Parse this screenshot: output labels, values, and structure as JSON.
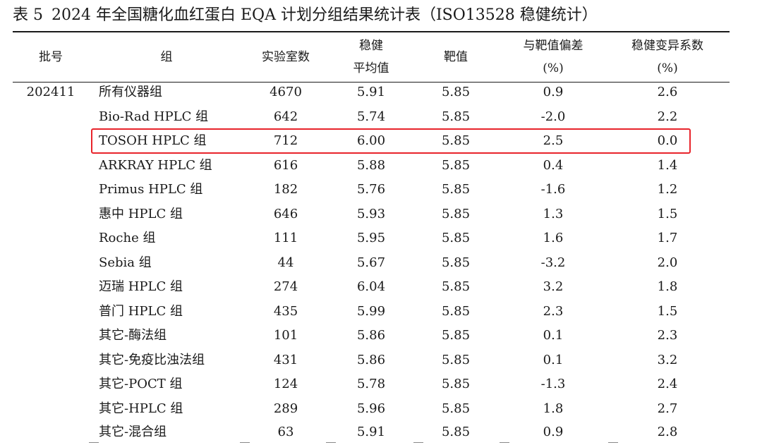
{
  "title": {
    "prefix": "表 5",
    "text": "2024 年全国糖化血红蛋白 EQA 计划分组结果统计表（ISO13528 稳健统计）"
  },
  "headers": {
    "batch": "批号",
    "group": "组",
    "labs": "实验室数",
    "robust_mean_l1": "稳健",
    "robust_mean_l2": "平均值",
    "target": "靶值",
    "bias_l1": "与靶值偏差",
    "bias_l2": "(%)",
    "cv_l1": "稳健变异系数",
    "cv_l2": "(%)"
  },
  "rows": [
    {
      "batch": "202411",
      "group": "所有仪器组",
      "labs": "4670",
      "mean": "5.91",
      "target": "5.85",
      "bias": "0.9",
      "cv": "2.6"
    },
    {
      "batch": "",
      "group": "Bio-Rad HPLC 组",
      "labs": "642",
      "mean": "5.74",
      "target": "5.85",
      "bias": "-2.0",
      "cv": "2.2"
    },
    {
      "batch": "",
      "group": "TOSOH HPLC 组",
      "labs": "712",
      "mean": "6.00",
      "target": "5.85",
      "bias": "2.5",
      "cv": "0.0"
    },
    {
      "batch": "",
      "group": "ARKRAY HPLC 组",
      "labs": "616",
      "mean": "5.88",
      "target": "5.85",
      "bias": "0.4",
      "cv": "1.4"
    },
    {
      "batch": "",
      "group": "Primus HPLC 组",
      "labs": "182",
      "mean": "5.76",
      "target": "5.85",
      "bias": "-1.6",
      "cv": "1.2"
    },
    {
      "batch": "",
      "group": "惠中 HPLC 组",
      "labs": "646",
      "mean": "5.93",
      "target": "5.85",
      "bias": "1.3",
      "cv": "1.5"
    },
    {
      "batch": "",
      "group": "Roche 组",
      "labs": "111",
      "mean": "5.95",
      "target": "5.85",
      "bias": "1.6",
      "cv": "1.7"
    },
    {
      "batch": "",
      "group": "Sebia 组",
      "labs": "44",
      "mean": "5.67",
      "target": "5.85",
      "bias": "-3.2",
      "cv": "2.0"
    },
    {
      "batch": "",
      "group": "迈瑞 HPLC 组",
      "labs": "274",
      "mean": "6.04",
      "target": "5.85",
      "bias": "3.2",
      "cv": "1.8"
    },
    {
      "batch": "",
      "group": "普门 HPLC 组",
      "labs": "435",
      "mean": "5.99",
      "target": "5.85",
      "bias": "2.3",
      "cv": "1.5"
    },
    {
      "batch": "",
      "group": "其它-酶法组",
      "labs": "101",
      "mean": "5.86",
      "target": "5.85",
      "bias": "0.1",
      "cv": "2.3"
    },
    {
      "batch": "",
      "group": "其它-免疫比浊法组",
      "labs": "431",
      "mean": "5.86",
      "target": "5.85",
      "bias": "0.1",
      "cv": "3.2"
    },
    {
      "batch": "",
      "group": "其它-POCT 组",
      "labs": "124",
      "mean": "5.78",
      "target": "5.85",
      "bias": "-1.3",
      "cv": "2.4"
    },
    {
      "batch": "",
      "group": "其它-HPLC 组",
      "labs": "289",
      "mean": "5.96",
      "target": "5.85",
      "bias": "1.8",
      "cv": "2.7"
    },
    {
      "batch": "",
      "group": "其它-混合组",
      "labs": "63",
      "mean": "5.91",
      "target": "5.85",
      "bias": "0.9",
      "cv": "2.8"
    }
  ],
  "highlight": {
    "row_index": 2,
    "color": "#e8242b"
  }
}
